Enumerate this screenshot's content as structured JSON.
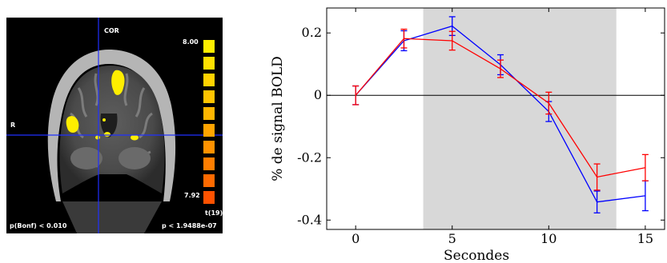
{
  "viewer": {
    "view_label": "COR",
    "side_label": "R",
    "scale_max": "8.00",
    "scale_min": "7.92",
    "stat_label": "t(19)",
    "threshold_label": "p(Bonf) < 0.010",
    "p_label": "p < 1.9488e-07",
    "scale_colors": [
      "#ffee00",
      "#ffe000",
      "#ffd200",
      "#ffc400",
      "#ffb600",
      "#ffa400",
      "#ff9200",
      "#ff7e00",
      "#ff6a00",
      "#ff5200"
    ]
  },
  "chart_data": {
    "type": "line",
    "xlabel": "Secondes",
    "ylabel": "% de signal BOLD",
    "xlim": [
      -1.5,
      16
    ],
    "ylim": [
      -0.43,
      0.28
    ],
    "xticks": [
      0,
      5,
      10,
      15
    ],
    "xtick_labels": [
      "0",
      "5",
      "10",
      "15"
    ],
    "yticks": [
      0.2,
      0,
      -0.2,
      -0.4
    ],
    "ytick_labels": [
      "0.2",
      "0",
      "-0.2",
      "-0.4"
    ],
    "shaded_region": [
      3.5,
      13.5
    ],
    "zero_line": true,
    "grid": false,
    "x": [
      0,
      2.5,
      5,
      7.5,
      10,
      12.5,
      15
    ],
    "series": [
      {
        "color": "#0000ff",
        "values": [
          0.0,
          0.175,
          0.222,
          0.098,
          -0.052,
          -0.342,
          -0.322
        ],
        "errors": [
          0.03,
          0.032,
          0.03,
          0.032,
          0.032,
          0.035,
          0.048
        ]
      },
      {
        "color": "#ff0000",
        "values": [
          0.0,
          0.182,
          0.175,
          0.085,
          -0.025,
          -0.262,
          -0.232
        ],
        "errors": [
          0.03,
          0.03,
          0.03,
          0.028,
          0.035,
          0.042,
          0.042
        ]
      }
    ]
  }
}
